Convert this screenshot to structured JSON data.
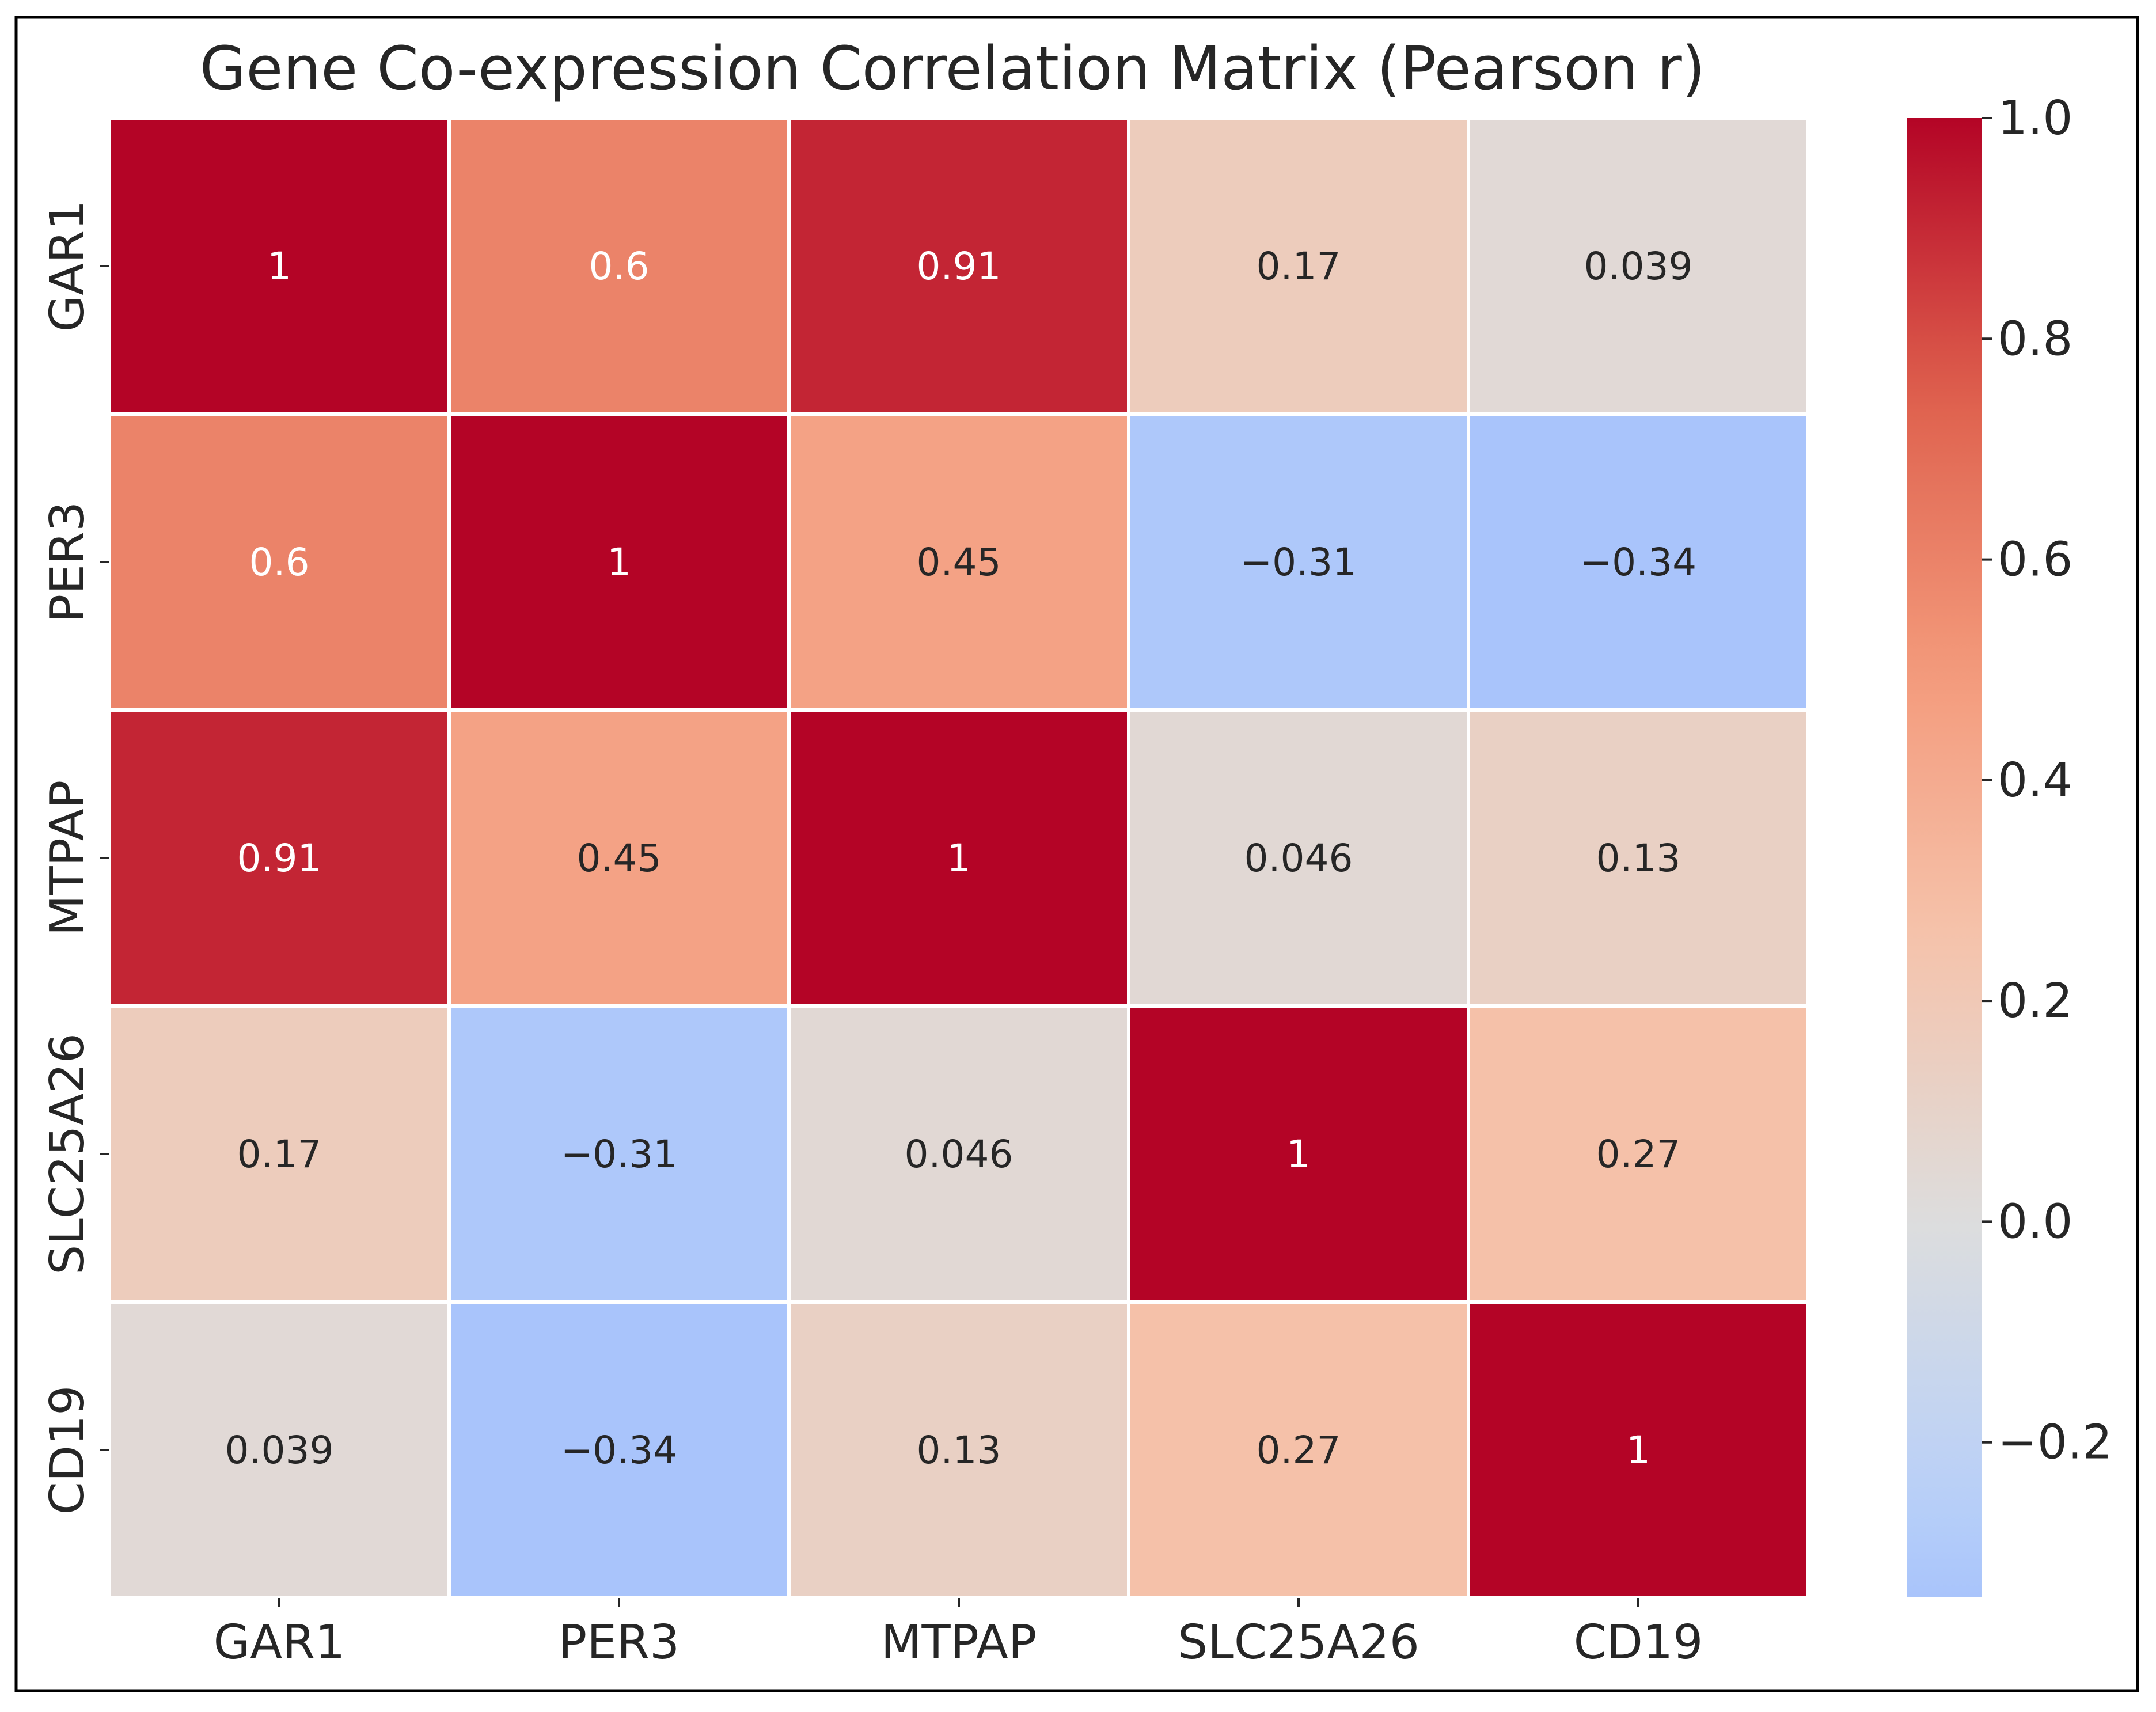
{
  "chart_data": {
    "type": "heatmap",
    "title": "Gene Co-expression Correlation Matrix (Pearson r)",
    "xlabel": "",
    "ylabel": "",
    "row_labels": [
      "GAR1",
      "PER3",
      "MTPAP",
      "SLC25A26",
      "CD19"
    ],
    "col_labels": [
      "GAR1",
      "PER3",
      "MTPAP",
      "SLC25A26",
      "CD19"
    ],
    "values": [
      [
        1,
        0.6,
        0.91,
        0.17,
        0.039
      ],
      [
        0.6,
        1,
        0.45,
        -0.31,
        -0.34
      ],
      [
        0.91,
        0.45,
        1,
        0.046,
        0.13
      ],
      [
        0.17,
        -0.31,
        0.046,
        1,
        0.27
      ],
      [
        0.039,
        -0.34,
        0.13,
        0.27,
        1
      ]
    ],
    "annotations": [
      [
        "1",
        "0.6",
        "0.91",
        "0.17",
        "0.039"
      ],
      [
        "0.6",
        "1",
        "0.45",
        "−0.31",
        "−0.34"
      ],
      [
        "0.91",
        "0.45",
        "1",
        "0.046",
        "0.13"
      ],
      [
        "0.17",
        "−0.31",
        "0.046",
        "1",
        "0.27"
      ],
      [
        "0.039",
        "−0.34",
        "0.13",
        "0.27",
        "1"
      ]
    ],
    "colormap": "coolwarm",
    "center": 0,
    "vmin": -0.34,
    "vmax": 1.0,
    "colorbar": {
      "ticks": [
        1.0,
        0.8,
        0.6,
        0.4,
        0.2,
        0.0,
        -0.2
      ],
      "tick_labels": [
        "1.0",
        "0.8",
        "0.6",
        "0.4",
        "0.2",
        "0.0",
        "−0.2"
      ]
    },
    "colors": {
      "cool_end": "#3b4cc0",
      "neutral": "#dddddd",
      "warm_end": "#b40426",
      "annotation_dark": "#262626",
      "annotation_light": "#ffffff",
      "cell_border": "#ffffff",
      "text": "#262626"
    }
  }
}
